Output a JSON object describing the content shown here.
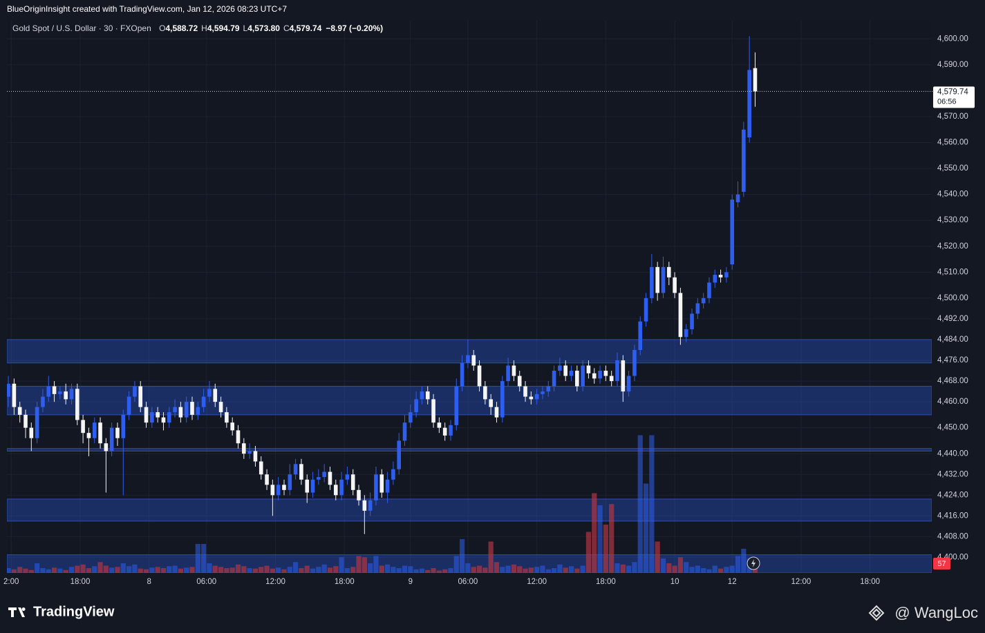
{
  "chart_data": {
    "type": "candlestick",
    "attribution": "BlueOriginInsight created with TradingView.com, Jan 12, 2026 08:23 UTC+7",
    "title": "Gold Spot / U.S. Dollar · 30 · FXOpen",
    "legend_values": [
      {
        "key": "O",
        "label": "4,588.72"
      },
      {
        "key": "H",
        "label": "4,594.79"
      },
      {
        "key": "L",
        "label": "4,573.80"
      },
      {
        "key": "C",
        "label": "4,579.74"
      }
    ],
    "change": "−8.97 (−0.20%)",
    "last_price": {
      "value": 4579.74,
      "label": "4,579.74"
    },
    "countdown": "06:56",
    "branding": "TradingView",
    "watermark": "@ WangLoc",
    "up_color": "#2e5ef0",
    "down_color": "#f5f5f5",
    "up_volume_color": "rgba(46,94,240,0.55)",
    "down_volume_color": "rgba(178,52,66,0.7)",
    "zone_color": "rgba(41,84,205,0.38)",
    "grid": true,
    "xlim": [
      -0.25,
      160.75
    ],
    "xticks": [
      {
        "value": 0.5,
        "label": "2:00"
      },
      {
        "value": 12.5,
        "label": "18:00"
      },
      {
        "value": 24.5,
        "label": "8"
      },
      {
        "value": 34.5,
        "label": "06:00"
      },
      {
        "value": 46.5,
        "label": "12:00"
      },
      {
        "value": 58.5,
        "label": "18:00"
      },
      {
        "value": 70,
        "label": "9"
      },
      {
        "value": 80,
        "label": "06:00"
      },
      {
        "value": 92,
        "label": "12:00"
      },
      {
        "value": 104,
        "label": "18:00"
      },
      {
        "value": 116,
        "label": "10"
      },
      {
        "value": 126,
        "label": "12"
      },
      {
        "value": 138,
        "label": "12:00"
      },
      {
        "value": 150,
        "label": "18:00"
      }
    ],
    "ylim": [
      4394,
      4607
    ],
    "yticks": [
      {
        "value": 4400,
        "label": "4,400.00"
      },
      {
        "value": 4408,
        "label": "4,408.00"
      },
      {
        "value": 4416,
        "label": "4,416.00"
      },
      {
        "value": 4424,
        "label": "4,424.00"
      },
      {
        "value": 4432,
        "label": "4,432.00"
      },
      {
        "value": 4440,
        "label": "4,440.00"
      },
      {
        "value": 4450,
        "label": "4,450.00"
      },
      {
        "value": 4460,
        "label": "4,460.00"
      },
      {
        "value": 4468,
        "label": "4,468.00"
      },
      {
        "value": 4476,
        "label": "4,476.00"
      },
      {
        "value": 4484,
        "label": "4,484.00"
      },
      {
        "value": 4492,
        "label": "4,492.00"
      },
      {
        "value": 4500,
        "label": "4,500.00"
      },
      {
        "value": 4510,
        "label": "4,510.00"
      },
      {
        "value": 4520,
        "label": "4,520.00"
      },
      {
        "value": 4530,
        "label": "4,530.00"
      },
      {
        "value": 4540,
        "label": "4,540.00"
      },
      {
        "value": 4550,
        "label": "4,550.00"
      },
      {
        "value": 4560,
        "label": "4,560.00"
      },
      {
        "value": 4570,
        "label": "4,570.00"
      },
      {
        "value": 4590,
        "label": "4,590.00"
      },
      {
        "value": 4600,
        "label": "4,600.00"
      }
    ],
    "zones": [
      [
        4475,
        4484
      ],
      [
        4455,
        4466
      ],
      [
        4441,
        4442
      ],
      [
        4414,
        4422.5
      ],
      [
        4394,
        4401
      ]
    ],
    "volume_lim": [
      0,
      600
    ],
    "ohlc": [
      [
        4462,
        4470,
        4458,
        4467
      ],
      [
        4467,
        4469,
        4455,
        4458
      ],
      [
        4458,
        4460,
        4452,
        4455
      ],
      [
        4455,
        4457,
        4446,
        4450
      ],
      [
        4450,
        4452,
        4441,
        4446
      ],
      [
        4446,
        4460,
        4444,
        4458
      ],
      [
        4458,
        4465,
        4456,
        4462
      ],
      [
        4462,
        4470,
        4460,
        4466
      ],
      [
        4466,
        4468,
        4460,
        4463
      ],
      [
        4463,
        4466,
        4461,
        4464
      ],
      [
        4464,
        4467,
        4459,
        4461
      ],
      [
        4461,
        4467,
        4459,
        4465
      ],
      [
        4465,
        4467,
        4451,
        4453
      ],
      [
        4453,
        4455,
        4444,
        4448
      ],
      [
        4448,
        4450,
        4439,
        4446
      ],
      [
        4446,
        4454,
        4444,
        4452
      ],
      [
        4452,
        4454,
        4442,
        4444
      ],
      [
        4444,
        4446,
        4425,
        4441
      ],
      [
        4441,
        4452,
        4439,
        4450
      ],
      [
        4450,
        4452,
        4443,
        4446
      ],
      [
        4446,
        4457,
        4424,
        4455
      ],
      [
        4455,
        4464,
        4453,
        4462
      ],
      [
        4462,
        4468,
        4460,
        4466
      ],
      [
        4466,
        4468,
        4456,
        4458
      ],
      [
        4458,
        4460,
        4450,
        4452
      ],
      [
        4452,
        4458,
        4450,
        4456
      ],
      [
        4456,
        4458,
        4452,
        4454
      ],
      [
        4454,
        4456,
        4449,
        4452
      ],
      [
        4452,
        4458,
        4450,
        4456
      ],
      [
        4456,
        4461,
        4454,
        4458
      ],
      [
        4458,
        4460,
        4452,
        4454
      ],
      [
        4454,
        4462,
        4452,
        4460
      ],
      [
        4460,
        4462,
        4453,
        4455
      ],
      [
        4455,
        4460,
        4453,
        4458
      ],
      [
        4458,
        4465,
        4456,
        4462
      ],
      [
        4462,
        4468,
        4460,
        4465
      ],
      [
        4465,
        4467,
        4458,
        4460
      ],
      [
        4460,
        4462,
        4454,
        4456
      ],
      [
        4456,
        4458,
        4450,
        4452
      ],
      [
        4452,
        4454,
        4447,
        4449
      ],
      [
        4449,
        4451,
        4442,
        4444
      ],
      [
        4444,
        4446,
        4438,
        4440
      ],
      [
        4440,
        4444,
        4438,
        4441
      ],
      [
        4441,
        4443,
        4435,
        4437
      ],
      [
        4437,
        4439,
        4430,
        4432
      ],
      [
        4432,
        4434,
        4426,
        4428
      ],
      [
        4428,
        4430,
        4416,
        4424
      ],
      [
        4424,
        4431,
        4422,
        4428
      ],
      [
        4428,
        4430,
        4424,
        4426
      ],
      [
        4426,
        4436,
        4424,
        4432
      ],
      [
        4432,
        4438,
        4430,
        4436
      ],
      [
        4436,
        4438,
        4428,
        4430
      ],
      [
        4430,
        4432,
        4421,
        4425
      ],
      [
        4425,
        4433,
        4423,
        4430
      ],
      [
        4430,
        4434,
        4428,
        4431
      ],
      [
        4431,
        4436,
        4429,
        4433
      ],
      [
        4433,
        4435,
        4426,
        4428
      ],
      [
        4428,
        4430,
        4422,
        4424
      ],
      [
        4424,
        4433,
        4422,
        4430
      ],
      [
        4430,
        4435,
        4428,
        4432
      ],
      [
        4432,
        4434,
        4424,
        4426
      ],
      [
        4426,
        4428,
        4420,
        4422
      ],
      [
        4422,
        4424,
        4409,
        4418
      ],
      [
        4418,
        4425,
        4416,
        4422
      ],
      [
        4422,
        4435,
        4420,
        4432
      ],
      [
        4432,
        4434,
        4423,
        4425
      ],
      [
        4425,
        4433,
        4421,
        4430
      ],
      [
        4430,
        4437,
        4428,
        4434
      ],
      [
        4434,
        4448,
        4432,
        4445
      ],
      [
        4445,
        4455,
        4443,
        4452
      ],
      [
        4452,
        4459,
        4450,
        4456
      ],
      [
        4456,
        4464,
        4454,
        4461
      ],
      [
        4461,
        4466,
        4459,
        4464
      ],
      [
        4464,
        4466,
        4459,
        4461
      ],
      [
        4461,
        4463,
        4450,
        4452
      ],
      [
        4452,
        4454,
        4448,
        4450
      ],
      [
        4450,
        4452,
        4445,
        4447
      ],
      [
        4447,
        4453,
        4445,
        4451
      ],
      [
        4451,
        4469,
        4449,
        4466
      ],
      [
        4466,
        4478,
        4464,
        4475
      ],
      [
        4475,
        4484,
        4473,
        4478
      ],
      [
        4478,
        4480,
        4472,
        4474
      ],
      [
        4474,
        4476,
        4464,
        4466
      ],
      [
        4466,
        4468,
        4459,
        4461
      ],
      [
        4461,
        4463,
        4455,
        4458
      ],
      [
        4458,
        4460,
        4452,
        4454
      ],
      [
        4454,
        4470,
        4452,
        4468
      ],
      [
        4468,
        4477,
        4466,
        4474
      ],
      [
        4474,
        4476,
        4468,
        4470
      ],
      [
        4470,
        4472,
        4464,
        4466
      ],
      [
        4466,
        4468,
        4460,
        4462
      ],
      [
        4462,
        4464,
        4459,
        4461
      ],
      [
        4461,
        4465,
        4459,
        4463
      ],
      [
        4463,
        4466,
        4461,
        4464
      ],
      [
        4464,
        4468,
        4462,
        4466
      ],
      [
        4466,
        4474,
        4464,
        4472
      ],
      [
        4472,
        4477,
        4470,
        4474
      ],
      [
        4474,
        4476,
        4468,
        4470
      ],
      [
        4470,
        4474,
        4468,
        4472
      ],
      [
        4472,
        4474,
        4464,
        4466
      ],
      [
        4466,
        4476,
        4464,
        4474
      ],
      [
        4474,
        4476,
        4469,
        4471
      ],
      [
        4471,
        4473,
        4467,
        4469
      ],
      [
        4469,
        4474,
        4467,
        4472
      ],
      [
        4472,
        4474,
        4468,
        4470
      ],
      [
        4470,
        4472,
        4466,
        4468
      ],
      [
        4468,
        4479,
        4466,
        4476
      ],
      [
        4476,
        4478,
        4460,
        4464
      ],
      [
        4464,
        4472,
        4462,
        4470
      ],
      [
        4470,
        4482,
        4468,
        4480
      ],
      [
        4480,
        4493,
        4478,
        4491
      ],
      [
        4491,
        4502,
        4489,
        4500
      ],
      [
        4500,
        4517,
        4498,
        4512
      ],
      [
        4512,
        4514,
        4499,
        4502
      ],
      [
        4502,
        4516,
        4500,
        4512
      ],
      [
        4512,
        4514,
        4505,
        4508
      ],
      [
        4508,
        4510,
        4500,
        4502
      ],
      [
        4502,
        4504,
        4482,
        4485
      ],
      [
        4485,
        4490,
        4483,
        4488
      ],
      [
        4488,
        4496,
        4486,
        4494
      ],
      [
        4494,
        4500,
        4492,
        4498
      ],
      [
        4498,
        4502,
        4496,
        4500
      ],
      [
        4500,
        4508,
        4498,
        4506
      ],
      [
        4506,
        4511,
        4504,
        4509
      ],
      [
        4509,
        4511,
        4506,
        4508
      ],
      [
        4508,
        4512,
        4506,
        4510
      ],
      [
        4513,
        4540,
        4511,
        4538
      ],
      [
        4537,
        4545,
        4535,
        4540
      ],
      [
        4541,
        4568,
        4539,
        4565
      ],
      [
        4562,
        4601,
        4560,
        4588
      ],
      [
        4588.72,
        4594.79,
        4573.8,
        4579.74
      ]
    ],
    "volume": [
      20,
      15,
      25,
      18,
      12,
      40,
      20,
      15,
      22,
      18,
      12,
      25,
      30,
      35,
      20,
      28,
      45,
      30,
      22,
      25,
      40,
      28,
      35,
      18,
      15,
      22,
      25,
      20,
      28,
      30,
      18,
      22,
      25,
      120,
      120,
      40,
      30,
      25,
      20,
      22,
      35,
      28,
      20,
      18,
      25,
      30,
      18,
      22,
      15,
      25,
      45,
      20,
      30,
      18,
      25,
      35,
      22,
      28,
      65,
      20,
      25,
      70,
      65,
      40,
      70,
      30,
      35,
      25,
      20,
      30,
      28,
      15,
      18,
      12,
      20,
      10,
      15,
      20,
      70,
      140,
      40,
      25,
      30,
      22,
      130,
      45,
      25,
      30,
      35,
      28,
      18,
      22,
      25,
      30,
      15,
      20,
      35,
      22,
      28,
      18,
      30,
      170,
      330,
      280,
      200,
      285,
      40,
      35,
      30,
      45,
      570,
      370,
      570,
      130,
      60,
      40,
      30,
      65,
      45,
      25,
      30,
      20,
      15,
      30,
      18,
      25,
      30,
      70,
      100,
      60,
      57
    ]
  }
}
